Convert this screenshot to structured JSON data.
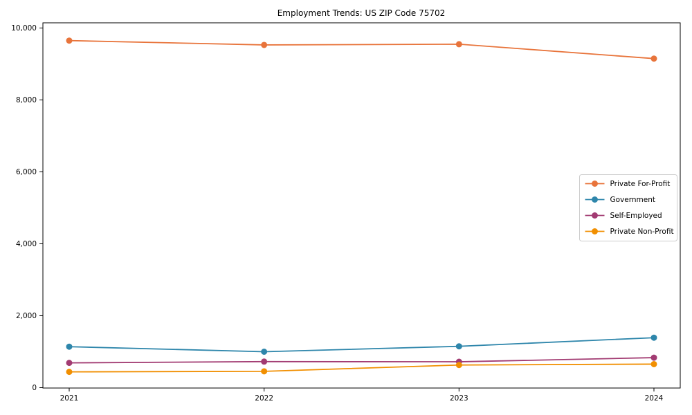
{
  "chart_data": {
    "type": "line",
    "title": "Employment Trends: US ZIP Code 75702",
    "x_categories": [
      "2021",
      "2022",
      "2023",
      "2024"
    ],
    "series": [
      {
        "name": "Private For-Profit",
        "color": "#E8743B",
        "values": [
          9650,
          9530,
          9550,
          9150
        ]
      },
      {
        "name": "Government",
        "color": "#2E86AB",
        "values": [
          1140,
          1000,
          1150,
          1390
        ]
      },
      {
        "name": "Self-Employed",
        "color": "#A23B72",
        "values": [
          690,
          725,
          720,
          835
        ]
      },
      {
        "name": "Private Non-Profit",
        "color": "#F18F01",
        "values": [
          440,
          455,
          630,
          655
        ]
      }
    ],
    "xlabel": "",
    "ylabel": "",
    "ylim": [
      0,
      10000
    ],
    "ytick_values": [
      0,
      2000,
      4000,
      6000,
      8000,
      10000
    ],
    "ytick_labels": [
      "0",
      "2,000",
      "4,000",
      "6,000",
      "8,000",
      "10,000"
    ],
    "grid": false,
    "legend_position": "middle-right",
    "marker": "circle",
    "spine_color": "#000000",
    "legend_border_color": "#cccccc",
    "background_color": "#ffffff"
  }
}
